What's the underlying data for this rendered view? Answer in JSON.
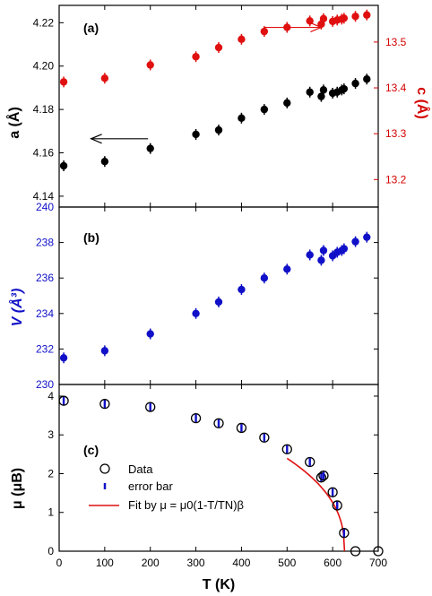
{
  "chart_data": [
    {
      "panel": "a",
      "type": "scatter",
      "panel_label": "(a)",
      "xlim": [
        0,
        700
      ],
      "ylabel_left": "a (Å)",
      "ylabel_right": "c (Å)",
      "ylim_left": [
        4.135,
        4.228
      ],
      "yticks_left": [
        "4.14",
        "4.16",
        "4.18",
        "4.20",
        "4.22"
      ],
      "ylim_right": [
        13.14,
        13.58
      ],
      "yticks_right": [
        "13.2",
        "13.3",
        "13.4",
        "13.5"
      ],
      "series": [
        {
          "axis": "left",
          "color": "#000000",
          "x": [
            10,
            100,
            200,
            300,
            350,
            400,
            450,
            500,
            550,
            575,
            580,
            600,
            610,
            620,
            625,
            650,
            675
          ],
          "y": [
            4.154,
            4.156,
            4.162,
            4.1685,
            4.1705,
            4.176,
            4.18,
            4.183,
            4.188,
            4.186,
            4.189,
            4.1875,
            4.188,
            4.189,
            4.1895,
            4.192,
            4.194
          ]
        },
        {
          "axis": "right",
          "color": "#e01010",
          "x": [
            10,
            100,
            200,
            300,
            350,
            400,
            450,
            500,
            550,
            575,
            580,
            600,
            610,
            620,
            625,
            650,
            675
          ],
          "y": [
            13.413,
            13.421,
            13.45,
            13.468,
            13.488,
            13.506,
            13.523,
            13.532,
            13.546,
            13.539,
            13.551,
            13.545,
            13.548,
            13.55,
            13.552,
            13.556,
            13.559
          ]
        }
      ],
      "arrows": [
        {
          "direction": "left",
          "x_from": 195,
          "x_to": 70,
          "y": 4.1665,
          "axis": "left",
          "color": "#000000"
        },
        {
          "direction": "right",
          "x_from": 450,
          "x_to": 575,
          "y": 13.532,
          "axis": "right",
          "color": "#e01010"
        }
      ]
    },
    {
      "panel": "b",
      "type": "scatter",
      "panel_label": "(b)",
      "xlim": [
        0,
        700
      ],
      "ylabel": "V (Å³)",
      "ylim": [
        230,
        240
      ],
      "yticks": [
        "230",
        "232",
        "234",
        "236",
        "238",
        "240"
      ],
      "series": [
        {
          "color": "#1010c8",
          "x": [
            10,
            100,
            200,
            300,
            350,
            400,
            450,
            500,
            550,
            575,
            580,
            600,
            610,
            620,
            625,
            650,
            675
          ],
          "y": [
            231.5,
            231.9,
            232.85,
            234.0,
            234.65,
            235.35,
            236.0,
            236.5,
            237.3,
            237.0,
            237.55,
            237.25,
            237.45,
            237.55,
            237.65,
            238.05,
            238.3
          ]
        }
      ]
    },
    {
      "panel": "c",
      "type": "scatter",
      "panel_label": "(c)",
      "xlabel": "T (K)",
      "ylabel": "μ (μB)",
      "xlim": [
        0,
        700
      ],
      "xticks": [
        "0",
        "100",
        "200",
        "300",
        "400",
        "500",
        "600",
        "700"
      ],
      "ylim": [
        0,
        4.3
      ],
      "yticks": [
        "0",
        "1",
        "2",
        "3",
        "4"
      ],
      "legend": {
        "placement": "lower-left",
        "data_label": "Data",
        "error_label": "error bar",
        "fit_label": "Fit by μ = μ0(1-T/TN)β"
      },
      "data": {
        "x": [
          10,
          100,
          200,
          300,
          350,
          400,
          450,
          500,
          550,
          575,
          580,
          600,
          610,
          625,
          650,
          700
        ],
        "y": [
          3.88,
          3.8,
          3.72,
          3.43,
          3.3,
          3.18,
          2.93,
          2.63,
          2.3,
          1.9,
          1.95,
          1.52,
          1.18,
          0.47,
          0.0,
          0.0
        ],
        "err": [
          0.12,
          0.12,
          0.12,
          0.12,
          0.1,
          0.1,
          0.1,
          0.1,
          0.1,
          0.1,
          0.1,
          0.1,
          0.1,
          0.1,
          0,
          0
        ]
      },
      "fit": {
        "color": "#e01010",
        "x_start": 500,
        "x_end": 626,
        "TN": 626,
        "mu0": 4.62,
        "beta": 0.41
      }
    }
  ]
}
